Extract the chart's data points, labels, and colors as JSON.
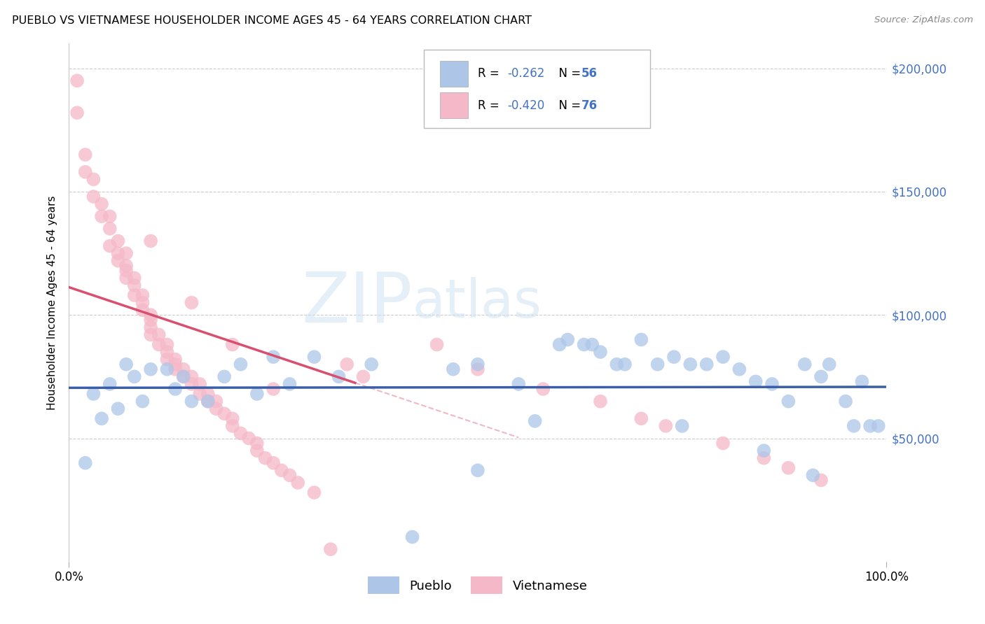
{
  "title": "PUEBLO VS VIETNAMESE HOUSEHOLDER INCOME AGES 45 - 64 YEARS CORRELATION CHART",
  "source": "Source: ZipAtlas.com",
  "ylabel": "Householder Income Ages 45 - 64 years",
  "xlim": [
    0.0,
    1.0
  ],
  "ylim": [
    0,
    210000
  ],
  "legend_r_pueblo": "-0.262",
  "legend_n_pueblo": "56",
  "legend_r_vietnamese": "-0.420",
  "legend_n_vietnamese": "76",
  "pueblo_color": "#adc6e8",
  "vietnamese_color": "#f5b8c8",
  "pueblo_line_color": "#3a5fa8",
  "vietnamese_line_color": "#d94f6e",
  "watermark_zip": "ZIP",
  "watermark_atlas": "atlas",
  "pueblo_x": [
    0.02,
    0.03,
    0.04,
    0.05,
    0.06,
    0.07,
    0.08,
    0.09,
    0.1,
    0.12,
    0.13,
    0.14,
    0.15,
    0.17,
    0.19,
    0.21,
    0.23,
    0.25,
    0.27,
    0.3,
    0.33,
    0.37,
    0.42,
    0.47,
    0.5,
    0.55,
    0.6,
    0.63,
    0.65,
    0.68,
    0.7,
    0.72,
    0.74,
    0.76,
    0.78,
    0.8,
    0.82,
    0.84,
    0.86,
    0.88,
    0.9,
    0.92,
    0.93,
    0.95,
    0.97,
    0.98,
    0.99,
    0.61,
    0.64,
    0.67,
    0.5,
    0.57,
    0.75,
    0.85,
    0.91,
    0.96
  ],
  "pueblo_y": [
    40000,
    68000,
    58000,
    72000,
    62000,
    80000,
    75000,
    65000,
    78000,
    78000,
    70000,
    75000,
    65000,
    65000,
    75000,
    80000,
    68000,
    83000,
    72000,
    83000,
    75000,
    80000,
    10000,
    78000,
    80000,
    72000,
    88000,
    88000,
    85000,
    80000,
    90000,
    80000,
    83000,
    80000,
    80000,
    83000,
    78000,
    73000,
    72000,
    65000,
    80000,
    75000,
    80000,
    65000,
    73000,
    55000,
    55000,
    90000,
    88000,
    80000,
    37000,
    57000,
    55000,
    45000,
    35000,
    55000
  ],
  "vietnamese_x": [
    0.01,
    0.01,
    0.02,
    0.02,
    0.03,
    0.03,
    0.04,
    0.04,
    0.05,
    0.05,
    0.05,
    0.06,
    0.06,
    0.06,
    0.07,
    0.07,
    0.07,
    0.07,
    0.08,
    0.08,
    0.08,
    0.09,
    0.09,
    0.09,
    0.1,
    0.1,
    0.1,
    0.1,
    0.11,
    0.11,
    0.12,
    0.12,
    0.12,
    0.13,
    0.13,
    0.13,
    0.14,
    0.14,
    0.15,
    0.15,
    0.16,
    0.16,
    0.17,
    0.17,
    0.18,
    0.18,
    0.19,
    0.2,
    0.2,
    0.21,
    0.22,
    0.23,
    0.23,
    0.24,
    0.25,
    0.26,
    0.27,
    0.28,
    0.3,
    0.32,
    0.34,
    0.36,
    0.45,
    0.5,
    0.58,
    0.65,
    0.7,
    0.73,
    0.8,
    0.85,
    0.88,
    0.92,
    0.1,
    0.15,
    0.2,
    0.25
  ],
  "vietnamese_y": [
    195000,
    182000,
    165000,
    158000,
    155000,
    148000,
    145000,
    140000,
    140000,
    135000,
    128000,
    130000,
    125000,
    122000,
    125000,
    120000,
    118000,
    115000,
    115000,
    112000,
    108000,
    108000,
    105000,
    102000,
    100000,
    98000,
    95000,
    92000,
    92000,
    88000,
    88000,
    85000,
    82000,
    82000,
    80000,
    78000,
    78000,
    75000,
    75000,
    72000,
    72000,
    68000,
    68000,
    65000,
    65000,
    62000,
    60000,
    58000,
    55000,
    52000,
    50000,
    48000,
    45000,
    42000,
    40000,
    37000,
    35000,
    32000,
    28000,
    5000,
    80000,
    75000,
    88000,
    78000,
    70000,
    65000,
    58000,
    55000,
    48000,
    42000,
    38000,
    33000,
    130000,
    105000,
    88000,
    70000
  ]
}
